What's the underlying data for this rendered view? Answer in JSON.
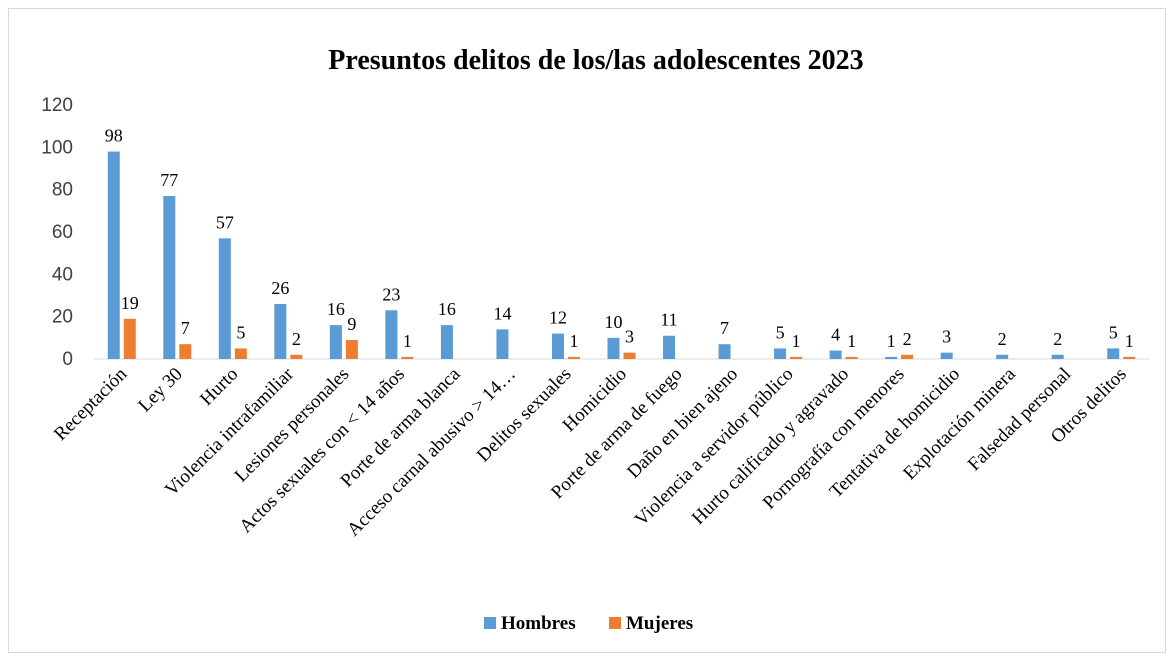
{
  "colors": {
    "hombres": "#5B9BD5",
    "mujeres": "#ED7D31",
    "axis": "#d9d9d9"
  },
  "chart_data": {
    "type": "bar",
    "title": "Presuntos delitos de los/las adolescentes 2023",
    "xlabel": "",
    "ylabel": "",
    "ylim": [
      0,
      120
    ],
    "yticks": [
      "0",
      "20",
      "40",
      "60",
      "80",
      "100",
      "120"
    ],
    "grid": false,
    "legend_position": "bottom",
    "categories": [
      "Receptación",
      "Ley 30",
      "Hurto",
      "Violencia intrafamiliar",
      "Lesiones personales",
      "Actos sexuales con < 14 años",
      "Porte de arma blanca",
      "Acceso carnal abusivo > 14…",
      "Delitos sexuales",
      "Homicidio",
      "Porte de arma de fuego",
      "Daño en bien ajeno",
      "Violencia a servidor público",
      "Hurto calificado y agravado",
      "Pornografía con menores",
      "Tentativa de homicidio",
      "Explotación minera",
      "Falsedad personal",
      "Otros delitos"
    ],
    "series": [
      {
        "name": "Hombres",
        "values": [
          98,
          77,
          57,
          26,
          16,
          23,
          16,
          14,
          12,
          10,
          11,
          7,
          5,
          4,
          1,
          3,
          2,
          2,
          5
        ]
      },
      {
        "name": "Mujeres",
        "values": [
          19,
          7,
          5,
          2,
          9,
          1,
          null,
          null,
          1,
          3,
          null,
          null,
          1,
          1,
          2,
          null,
          null,
          null,
          1
        ]
      }
    ]
  }
}
